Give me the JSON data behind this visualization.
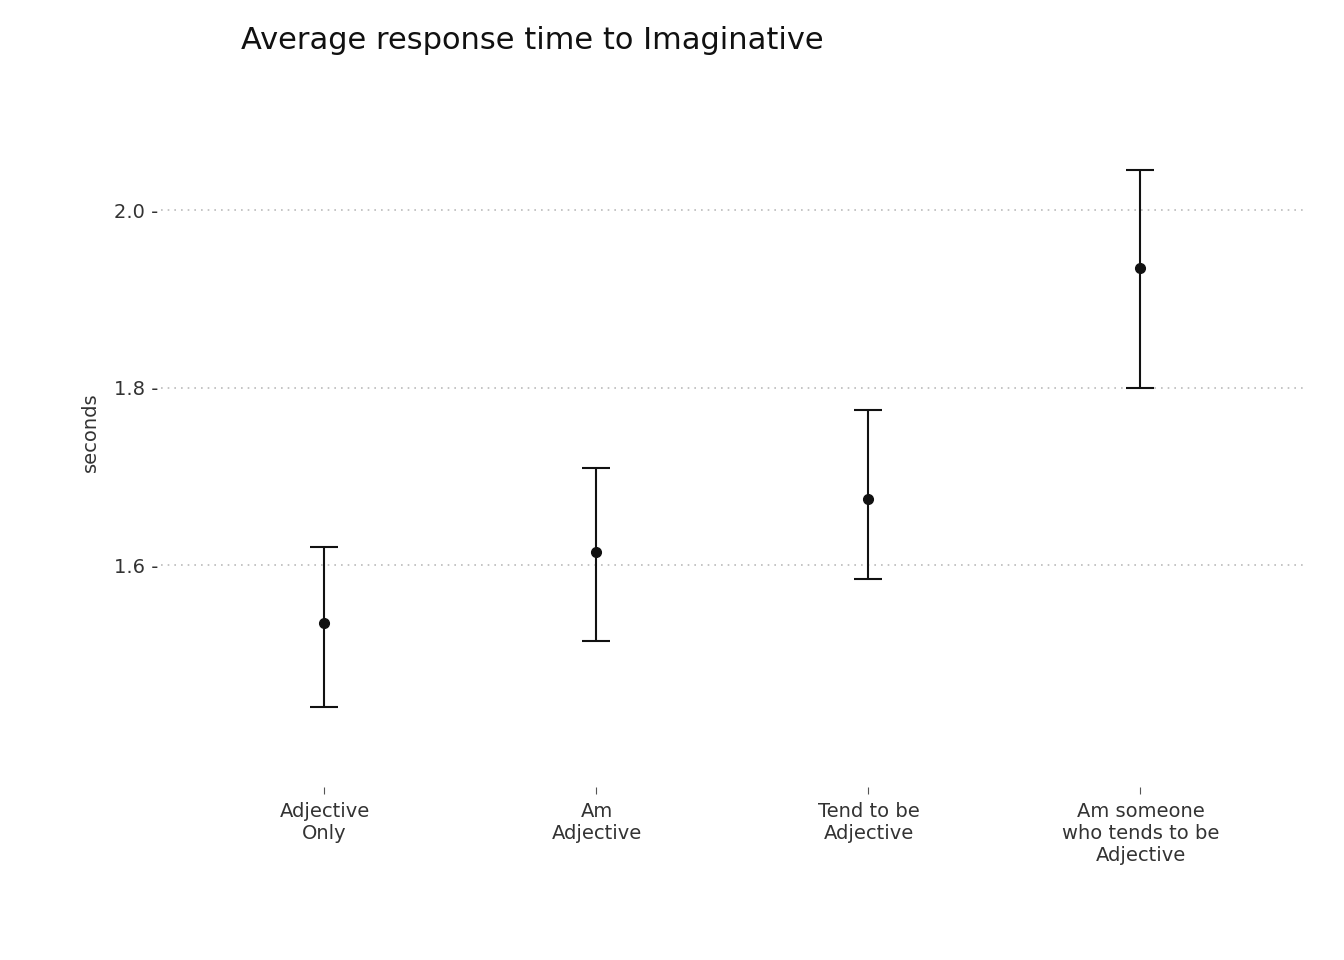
{
  "title": "Average response time to Imaginative",
  "ylabel": "seconds",
  "categories": [
    "Adjective\nOnly",
    "Am\nAdjective",
    "Tend to be\nAdjective",
    "Am someone\nwho tends to be\nAdjective"
  ],
  "means": [
    1.535,
    1.615,
    1.675,
    1.935
  ],
  "ci_lower": [
    1.44,
    1.515,
    1.585,
    1.8
  ],
  "ci_upper": [
    1.62,
    1.71,
    1.775,
    2.045
  ],
  "yticks": [
    1.6,
    1.8,
    2.0
  ],
  "ytick_labels": [
    "1.6 -",
    "1.8 -",
    "2.0 -"
  ],
  "ylim": [
    1.35,
    2.15
  ],
  "background_color": "#ffffff",
  "point_color": "#111111",
  "line_color": "#111111",
  "grid_color": "#bbbbbb",
  "title_fontsize": 22,
  "label_fontsize": 14,
  "tick_fontsize": 14,
  "capsize": 10,
  "linewidth": 1.5
}
